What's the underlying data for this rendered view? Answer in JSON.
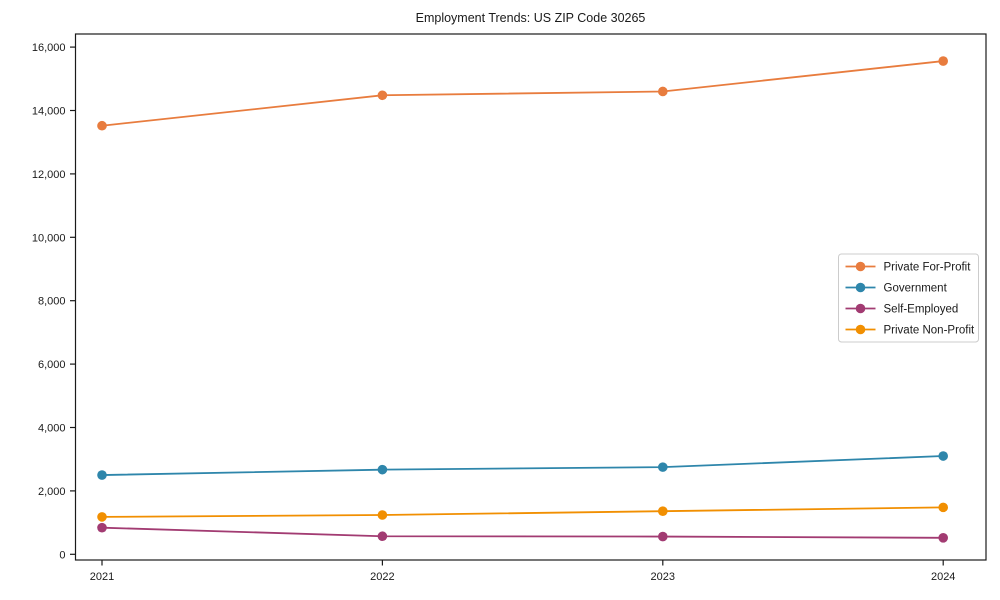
{
  "chart_data": {
    "type": "line",
    "title": "Employment Trends: US ZIP Code 30265",
    "x": [
      "2021",
      "2022",
      "2023",
      "2024"
    ],
    "series": [
      {
        "name": "Private For-Profit",
        "color": "#E87C3E",
        "values": [
          13520,
          14480,
          14600,
          15560
        ]
      },
      {
        "name": "Government",
        "color": "#2E86AB",
        "values": [
          2500,
          2670,
          2750,
          3100
        ]
      },
      {
        "name": "Self-Employed",
        "color": "#A23B72",
        "values": [
          840,
          570,
          560,
          520
        ]
      },
      {
        "name": "Private Non-Profit",
        "color": "#F18F01",
        "values": [
          1180,
          1240,
          1360,
          1480
        ]
      }
    ],
    "xlabel": "",
    "ylabel": "",
    "ylim": [
      0,
      16000
    ],
    "yticks": [
      0,
      2000,
      4000,
      6000,
      8000,
      10000,
      12000,
      14000,
      16000
    ],
    "ytick_labels": [
      "0",
      "2,000",
      "4,000",
      "6,000",
      "8,000",
      "10,000",
      "12,000",
      "14,000",
      "16,000"
    ],
    "legend": {
      "position": "center-right",
      "entries": [
        "Private For-Profit",
        "Government",
        "Self-Employed",
        "Private Non-Profit"
      ]
    },
    "grid": false,
    "marker": "circle",
    "axis_color": "#1a1a1a"
  }
}
